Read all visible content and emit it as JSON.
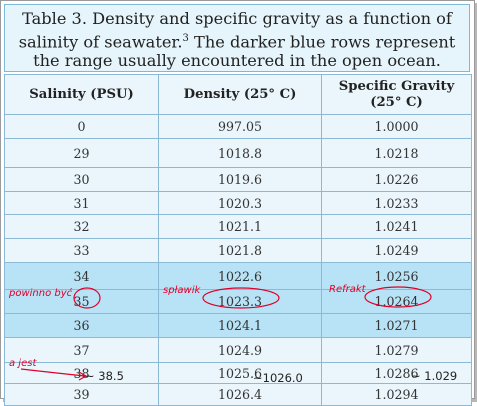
{
  "caption": {
    "line1": "Table 3.  Density and specific gravity as a function of",
    "line2_text": "salinity of seawater.",
    "line2_ref": "3",
    "line2_rest": " The darker blue rows represent",
    "line3": "the range usually encountered in the open ocean."
  },
  "headers": {
    "salinity": "Salinity (PSU)",
    "density_line1": "Density (25° C)",
    "sg_line1": "Specific Gravity",
    "sg_line2": "(25° C)"
  },
  "rows": [
    {
      "salinity": "0",
      "density": "997.05",
      "sg": "1.0000",
      "shade": "light"
    },
    {
      "salinity": "29",
      "density": "1018.8",
      "sg": "1.0218",
      "shade": "light"
    },
    {
      "salinity": "30",
      "density": "1019.6",
      "sg": "1.0226",
      "shade": "light"
    },
    {
      "salinity": "31",
      "density": "1020.3",
      "sg": "1.0233",
      "shade": "light"
    },
    {
      "salinity": "32",
      "density": "1021.1",
      "sg": "1.0241",
      "shade": "light"
    },
    {
      "salinity": "33",
      "density": "1021.8",
      "sg": "1.0249",
      "shade": "light"
    },
    {
      "salinity": "34",
      "density": "1022.6",
      "sg": "1.0256",
      "shade": "dark"
    },
    {
      "salinity": "35",
      "density": "1023.3",
      "sg": "1.0264",
      "shade": "dark"
    },
    {
      "salinity": "36",
      "density": "1024.1",
      "sg": "1.0271",
      "shade": "dark"
    },
    {
      "salinity": "37",
      "density": "1024.9",
      "sg": "1.0279",
      "shade": "light"
    },
    {
      "salinity": "38",
      "density": "1025.6",
      "sg": "1.0286",
      "shade": "light"
    },
    {
      "salinity": "39",
      "density": "1026.4",
      "sg": "1.0294",
      "shade": "light"
    }
  ],
  "annotations": {
    "powinno_byc": "powinno być",
    "splawik": "spławik",
    "refrakt": "Refrakt",
    "a_jest": "a jest",
    "value_salinity": "~ 38.5",
    "value_density": "~1026.0",
    "value_sg": "~ 1.029",
    "ink_color": "#e0002a"
  }
}
